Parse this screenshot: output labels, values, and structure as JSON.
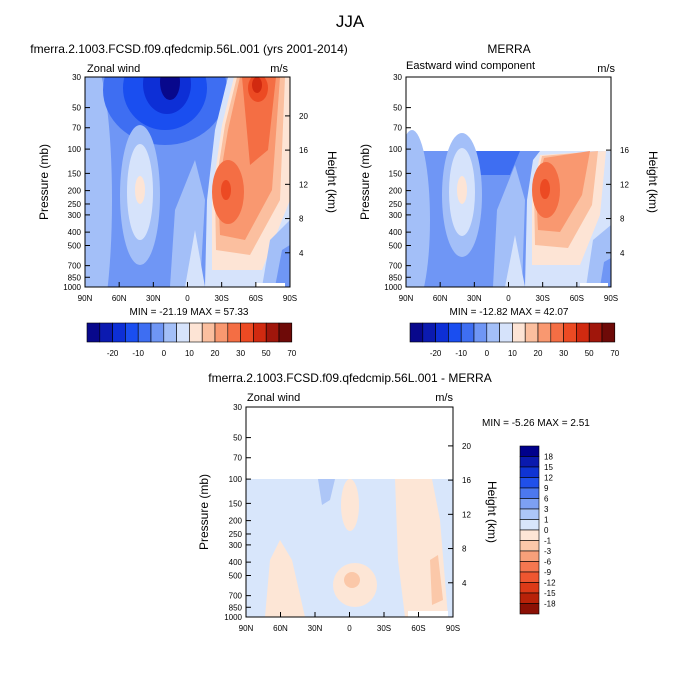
{
  "figure": {
    "title": "JJA"
  },
  "colors": {
    "zonal_scale": [
      "#08088c",
      "#0b1ab0",
      "#0d2fd6",
      "#1a4ef0",
      "#3e6ef2",
      "#6f96f5",
      "#a3bff8",
      "#d6e3fb",
      "#fde4d5",
      "#fbbf9f",
      "#f99870",
      "#f46e44",
      "#ec4a23",
      "#d12a10",
      "#a0160b",
      "#6e0a08"
    ],
    "diff_scale": [
      "#00008b",
      "#0a1aae",
      "#0f34d4",
      "#2050ea",
      "#4c78ef",
      "#7da0f3",
      "#adc6f7",
      "#d8e6fb",
      "#fde6d6",
      "#fbc8a9",
      "#f8a07a",
      "#f57750",
      "#ee5630",
      "#dc3a18",
      "#b82209",
      "#8b1005"
    ]
  },
  "chart_data": [
    {
      "type": "heatmap",
      "title": "fmerra.2.1003.FCSD.f09.qfedcmip.56L.001 (yrs 2001-2014)",
      "left_label": "Zonal wind",
      "right_label": "m/s",
      "ylabel": "Pressure (mb)",
      "y2label": "Height (km)",
      "x_ticks": [
        "90N",
        "60N",
        "30N",
        "0",
        "30S",
        "60S",
        "90S"
      ],
      "y_ticks": [
        30,
        50,
        70,
        100,
        150,
        200,
        250,
        300,
        400,
        500,
        700,
        850,
        1000
      ],
      "y2_ticks": [
        4,
        8,
        12,
        16,
        20
      ],
      "ylim": [
        30,
        1000
      ],
      "min_label": "MIN = -21.19  MAX = 57.33",
      "colorbar_levels": [
        -20,
        -10,
        0,
        10,
        20,
        30,
        40,
        50,
        70
      ],
      "colorbar_labels": [
        "-20",
        "-10",
        "0",
        "10",
        "20",
        "30",
        "50",
        "70"
      ]
    },
    {
      "type": "heatmap",
      "title": "MERRA",
      "left_label": "Eastward wind component",
      "right_label": "m/s",
      "ylabel": "Pressure (mb)",
      "y2label": "Height (km)",
      "x_ticks": [
        "90N",
        "60N",
        "30N",
        "0",
        "30S",
        "60S",
        "90S"
      ],
      "y_ticks": [
        30,
        50,
        70,
        100,
        150,
        200,
        250,
        300,
        400,
        500,
        700,
        850,
        1000
      ],
      "y2_ticks": [
        4,
        8,
        12,
        16
      ],
      "ylim": [
        30,
        1000
      ],
      "min_label": "MIN = -12.82  MAX = 42.07",
      "colorbar_labels": [
        "-20",
        "-10",
        "0",
        "10",
        "20",
        "30",
        "50",
        "70"
      ]
    },
    {
      "type": "heatmap",
      "title": "fmerra.2.1003.FCSD.f09.qfedcmip.56L.001 - MERRA",
      "left_label": "Zonal wind",
      "right_label": "m/s",
      "ylabel": "Pressure (mb)",
      "y2label": "Height (km)",
      "x_ticks": [
        "90N",
        "60N",
        "30N",
        "0",
        "30S",
        "60S",
        "90S"
      ],
      "y_ticks": [
        30,
        50,
        70,
        100,
        150,
        200,
        250,
        300,
        400,
        500,
        700,
        850,
        1000
      ],
      "y2_ticks": [
        4,
        8,
        12,
        16,
        20
      ],
      "ylim": [
        30,
        1000
      ],
      "min_label": "MIN =  -5.26  MAX =   2.51",
      "colorbar_labels": [
        "18",
        "15",
        "12",
        "9",
        "6",
        "3",
        "1",
        "0",
        "-1",
        "-3",
        "-6",
        "-9",
        "-12",
        "-15",
        "-18"
      ]
    }
  ]
}
